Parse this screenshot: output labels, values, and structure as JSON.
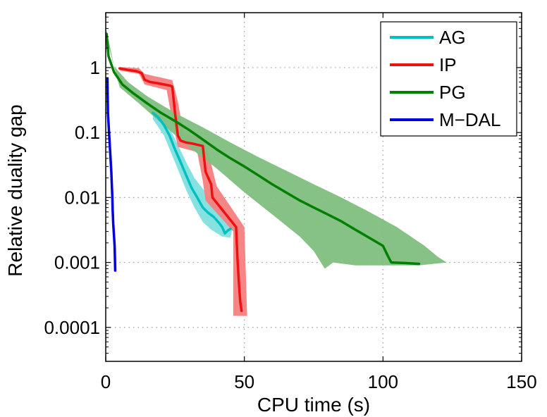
{
  "chart_data": {
    "type": "line",
    "title": "",
    "xlabel": "CPU time (s)",
    "ylabel": "Relative duality gap",
    "xscale": "linear",
    "yscale": "log",
    "xlim": [
      0,
      150
    ],
    "ylim": [
      3e-05,
      7
    ],
    "xticks": [
      0,
      50,
      100,
      150
    ],
    "xtick_labels": [
      "0",
      "50",
      "100",
      "150"
    ],
    "yticks": [
      0.0001,
      0.001,
      0.01,
      0.1,
      1
    ],
    "ytick_labels": [
      "0.0001",
      "0.001",
      "0.01",
      "0.1",
      "1"
    ],
    "grid": true,
    "legend_position": "top-right",
    "legend": [
      "AG",
      "IP",
      "PG",
      "M−DAL"
    ],
    "series": [
      {
        "name": "AG",
        "color": "#00bfbf",
        "band_color": "#7fdfdf",
        "points": [
          [
            17,
            0.2
          ],
          [
            19,
            0.17
          ],
          [
            21,
            0.13
          ],
          [
            23,
            0.09
          ],
          [
            25,
            0.055
          ],
          [
            27,
            0.035
          ],
          [
            29,
            0.022
          ],
          [
            31,
            0.014
          ],
          [
            33,
            0.01
          ],
          [
            35,
            0.007
          ],
          [
            37,
            0.0058
          ],
          [
            39,
            0.005
          ],
          [
            41,
            0.004
          ],
          [
            42,
            0.0035
          ],
          [
            43,
            0.0028
          ],
          [
            44,
            0.0031
          ],
          [
            45,
            0.0033
          ]
        ],
        "band_lower": [
          [
            17,
            0.16
          ],
          [
            21,
            0.09
          ],
          [
            25,
            0.035
          ],
          [
            29,
            0.013
          ],
          [
            32,
            0.007
          ],
          [
            35,
            0.0042
          ],
          [
            38,
            0.0032
          ],
          [
            42,
            0.0025
          ],
          [
            45,
            0.0024
          ]
        ],
        "band_upper": [
          [
            17,
            0.22
          ],
          [
            21,
            0.17
          ],
          [
            25,
            0.08
          ],
          [
            29,
            0.035
          ],
          [
            32,
            0.02
          ],
          [
            36,
            0.012
          ],
          [
            40,
            0.008
          ],
          [
            43,
            0.0055
          ],
          [
            46,
            0.004
          ]
        ]
      },
      {
        "name": "IP",
        "color": "#ee1111",
        "band_color": "#f58080",
        "points": [
          [
            5,
            0.97
          ],
          [
            8,
            0.92
          ],
          [
            11,
            0.88
          ],
          [
            13,
            0.82
          ],
          [
            14,
            0.65
          ],
          [
            16,
            0.6
          ],
          [
            19,
            0.57
          ],
          [
            21,
            0.55
          ],
          [
            23,
            0.53
          ],
          [
            24,
            0.51
          ],
          [
            25,
            0.2
          ],
          [
            26,
            0.09
          ],
          [
            27,
            0.075
          ],
          [
            29,
            0.07
          ],
          [
            31,
            0.068
          ],
          [
            33,
            0.065
          ],
          [
            35,
            0.062
          ],
          [
            35.5,
            0.04
          ],
          [
            36,
            0.025
          ],
          [
            37,
            0.02
          ],
          [
            38,
            0.016
          ],
          [
            38.5,
            0.01
          ],
          [
            47,
            0.0035
          ],
          [
            47.5,
            0.0012
          ],
          [
            48,
            0.0005
          ],
          [
            48.5,
            0.00025
          ],
          [
            49,
            0.00018
          ]
        ],
        "band_lower": [
          [
            5,
            0.9
          ],
          [
            12,
            0.8
          ],
          [
            14,
            0.55
          ],
          [
            22,
            0.45
          ],
          [
            24,
            0.15
          ],
          [
            26,
            0.06
          ],
          [
            33,
            0.05
          ],
          [
            35,
            0.018
          ],
          [
            36,
            0.009
          ],
          [
            46,
            0.003
          ],
          [
            46,
            0.00015
          ],
          [
            48,
            0.00015
          ]
        ],
        "band_upper": [
          [
            5,
            1.02
          ],
          [
            12,
            0.98
          ],
          [
            14,
            0.8
          ],
          [
            24,
            0.64
          ],
          [
            26,
            0.3
          ],
          [
            28,
            0.1
          ],
          [
            35,
            0.08
          ],
          [
            37,
            0.05
          ],
          [
            40,
            0.015
          ],
          [
            50,
            0.0035
          ],
          [
            51,
            0.00015
          ]
        ]
      },
      {
        "name": "PG",
        "color": "#007f00",
        "band_color": "#7fbf7f",
        "points": [
          [
            0.3,
            3.3
          ],
          [
            1,
            1.5
          ],
          [
            3,
            0.85
          ],
          [
            6,
            0.55
          ],
          [
            10,
            0.4
          ],
          [
            15,
            0.28
          ],
          [
            20,
            0.2
          ],
          [
            25,
            0.15
          ],
          [
            30,
            0.11
          ],
          [
            35,
            0.078
          ],
          [
            40,
            0.055
          ],
          [
            45,
            0.04
          ],
          [
            50,
            0.03
          ],
          [
            55,
            0.022
          ],
          [
            60,
            0.016
          ],
          [
            65,
            0.012
          ],
          [
            70,
            0.009
          ],
          [
            75,
            0.007
          ],
          [
            80,
            0.0055
          ],
          [
            85,
            0.0043
          ],
          [
            90,
            0.0032
          ],
          [
            95,
            0.0024
          ],
          [
            100,
            0.0018
          ],
          [
            102,
            0.0012
          ],
          [
            103,
            0.001
          ],
          [
            108,
            0.00098
          ],
          [
            113,
            0.00095
          ]
        ],
        "band_lower": [
          [
            0.3,
            2.8
          ],
          [
            5,
            0.5
          ],
          [
            12,
            0.28
          ],
          [
            20,
            0.14
          ],
          [
            30,
            0.06
          ],
          [
            40,
            0.028
          ],
          [
            50,
            0.012
          ],
          [
            60,
            0.0055
          ],
          [
            70,
            0.0025
          ],
          [
            75,
            0.0015
          ],
          [
            79,
            0.0008
          ],
          [
            82,
            0.001
          ],
          [
            90,
            0.0009
          ],
          [
            100,
            0.0009
          ],
          [
            113,
            0.0009
          ]
        ],
        "band_upper": [
          [
            0.3,
            3.8
          ],
          [
            3,
            1.05
          ],
          [
            8,
            0.6
          ],
          [
            15,
            0.36
          ],
          [
            25,
            0.2
          ],
          [
            35,
            0.12
          ],
          [
            45,
            0.07
          ],
          [
            55,
            0.042
          ],
          [
            65,
            0.026
          ],
          [
            75,
            0.016
          ],
          [
            85,
            0.01
          ],
          [
            95,
            0.006
          ],
          [
            105,
            0.0035
          ],
          [
            115,
            0.0018
          ],
          [
            120,
            0.0012
          ],
          [
            123,
            0.001
          ]
        ]
      },
      {
        "name": "M−DAL",
        "color": "#0000dd",
        "points": [
          [
            0.6,
            0.68
          ],
          [
            0.8,
            0.2
          ],
          [
            1.2,
            0.1
          ],
          [
            1.6,
            0.05
          ],
          [
            2,
            0.025
          ],
          [
            2.2,
            0.015
          ],
          [
            2.4,
            0.01
          ],
          [
            2.5,
            0.0065
          ],
          [
            2.7,
            0.004
          ],
          [
            3,
            0.0025
          ],
          [
            3.2,
            0.0018
          ],
          [
            3.3,
            0.0012
          ],
          [
            3.4,
            0.00075
          ]
        ]
      }
    ]
  }
}
